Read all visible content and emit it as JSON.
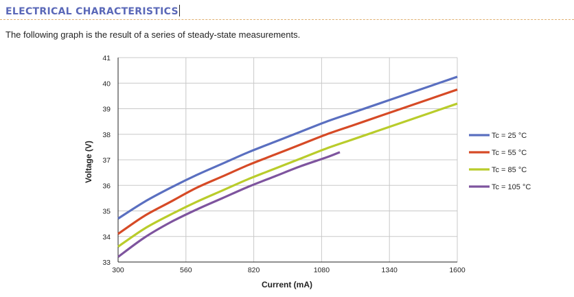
{
  "header": {
    "title": "ELECTRICAL CHARACTERISTICS",
    "intro": "The following graph is the result of a series of steady-state measurements."
  },
  "colors": {
    "heading": "#5a68b8",
    "rule": "#e0b070",
    "grid": "#c8c8c8",
    "axis": "#222222"
  },
  "chart_data": {
    "type": "line",
    "title": "",
    "xlabel": "Current (mA)",
    "ylabel": "Voltage (V)",
    "xlim": [
      300,
      1600
    ],
    "ylim": [
      33,
      41
    ],
    "xticks": [
      300,
      560,
      820,
      1080,
      1340,
      1600
    ],
    "yticks": [
      33,
      34,
      35,
      36,
      37,
      38,
      39,
      40,
      41
    ],
    "grid": true,
    "legend_position": "right",
    "series": [
      {
        "name": "Tc = 25 °C",
        "color": "#5a6fc0",
        "x": [
          300,
          400,
          500,
          600,
          700,
          800,
          900,
          1000,
          1100,
          1200,
          1300,
          1400,
          1500,
          1600
        ],
        "y": [
          34.7,
          35.35,
          35.9,
          36.4,
          36.85,
          37.3,
          37.7,
          38.1,
          38.5,
          38.85,
          39.2,
          39.55,
          39.9,
          40.25
        ]
      },
      {
        "name": "Tc = 55 °C",
        "color": "#d64a26",
        "x": [
          300,
          400,
          500,
          600,
          700,
          800,
          900,
          1000,
          1100,
          1200,
          1300,
          1400,
          1500,
          1600
        ],
        "y": [
          34.1,
          34.8,
          35.35,
          35.9,
          36.35,
          36.8,
          37.2,
          37.6,
          38.0,
          38.35,
          38.7,
          39.05,
          39.4,
          39.75
        ]
      },
      {
        "name": "Tc = 85 °C",
        "color": "#b9cc2b",
        "x": [
          300,
          400,
          500,
          600,
          700,
          800,
          900,
          1000,
          1100,
          1200,
          1300,
          1400,
          1500,
          1600
        ],
        "y": [
          33.6,
          34.3,
          34.85,
          35.35,
          35.8,
          36.25,
          36.65,
          37.05,
          37.45,
          37.8,
          38.15,
          38.5,
          38.85,
          39.2
        ]
      },
      {
        "name": "Tc = 105 °C",
        "color": "#7e549e",
        "x": [
          300,
          400,
          500,
          600,
          700,
          800,
          900,
          1000,
          1100,
          1150
        ],
        "y": [
          33.2,
          33.95,
          34.55,
          35.05,
          35.5,
          35.95,
          36.35,
          36.75,
          37.1,
          37.3
        ]
      }
    ]
  }
}
